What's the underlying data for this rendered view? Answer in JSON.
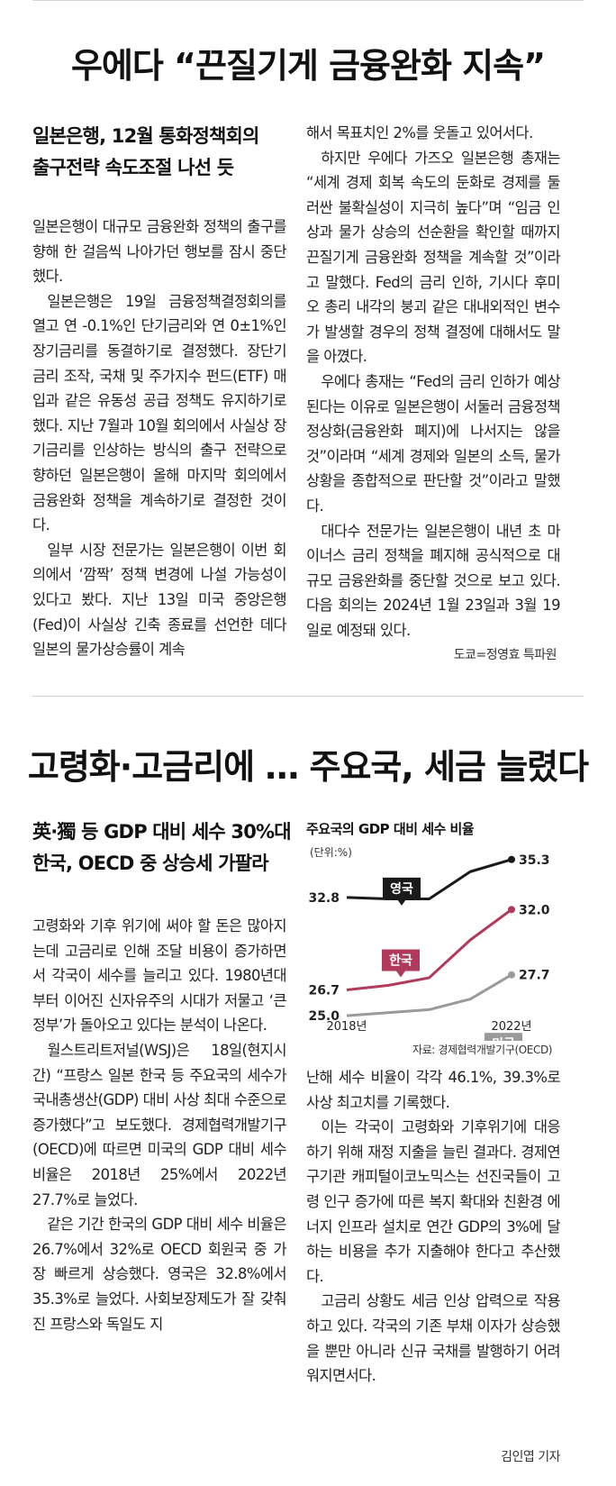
{
  "article1": {
    "headline": "우에다 “끈질기게 금융완화 지속”",
    "subhead": [
      "일본은행, 12월 통화정책회의",
      "출구전략 속도조절 나선 듯"
    ],
    "left_paragraphs": [
      "일본은행이 대규모 금융완화 정책의 출구를 향해 한 걸음씩 나아가던 행보를 잠시 중단했다.",
      "일본은행은 19일 금융정책결정회의를 열고 연 -0.1%인 단기금리와 연 0±1%인 장기금리를 동결하기로 결정했다. 장단기 금리 조작, 국채 및 주가지수 펀드(ETF) 매입과 같은 유동성 공급 정책도 유지하기로 했다. 지난 7월과 10월 회의에서 사실상 장기금리를 인상하는 방식의 출구 전략으로 향하던 일본은행이 올해 마지막 회의에서 금융완화 정책을 계속하기로 결정한 것이다.",
      "일부 시장 전문가는 일본은행이 이번 회의에서 ‘깜짝’ 정책 변경에 나설 가능성이 있다고 봤다. 지난 13일 미국 중앙은행(Fed)이 사실상 긴축 종료를 선언한 데다 일본의 물가상승률이 계속"
    ],
    "right_paragraphs": [
      "해서 목표치인 2%를 웃돌고 있어서다.",
      "하지만 우에다 가즈오 일본은행 총재는 “세계 경제 회복 속도의 둔화로 경제를 둘러싼 불확실성이 지극히 높다”며 “임금 인상과 물가 상승의 선순환을 확인할 때까지 끈질기게 금융완화 정책을 계속할 것”이라고 말했다. Fed의 금리 인하, 기시다 후미오 총리 내각의 붕괴 같은 대내외적인 변수가 발생할 경우의 정책 결정에 대해서도 말을 아꼈다.",
      "우에다 총재는 “Fed의 금리 인하가 예상된다는 이유로 일본은행이 서둘러 금융정책 정상화(금융완화 폐지)에 나서지는 않을 것”이라며 “세계 경제와 일본의 소득, 물가 상황을 종합적으로 판단할 것”이라고 말했다.",
      "대다수 전문가는 일본은행이 내년 초 마이너스 금리 정책을 폐지해 공식적으로 대규모 금융완화를 중단할 것으로 보고 있다. 다음 회의는 2024년 1월 23일과 3월 19일로 예정돼 있다."
    ],
    "byline": "도쿄=정영효 특파원"
  },
  "article2": {
    "headline": "고령화·고금리에 … 주요국, 세금 늘렸다",
    "subhead": [
      "英·獨 등 GDP 대비 세수 30%대",
      "한국, OECD 중 상승세 가팔라"
    ],
    "left_paragraphs": [
      "고령화와 기후 위기에 써야 할 돈은 많아지는데 고금리로 인해 조달 비용이 증가하면서 각국이 세수를 늘리고 있다. 1980년대부터 이어진 신자유주의 시대가 저물고 ‘큰 정부’가 돌아오고 있다는 분석이 나온다.",
      "월스트리트저널(WSJ)은 18일(현지시간) “프랑스 일본 한국 등 주요국의 세수가 국내총생산(GDP) 대비 사상 최대 수준으로 증가했다”고 보도했다. 경제협력개발기구(OECD)에 따르면 미국의 GDP 대비 세수 비율은 2018년 25%에서 2022년 27.7%로 늘었다.",
      "같은 기간 한국의 GDP 대비 세수 비율은 26.7%에서 32%로 OECD 회원국 중 가장 빠르게 상승했다. 영국은 32.8%에서 35.3%로 늘었다. 사회보장제도가 잘 갖춰진 프랑스와 독일도 지"
    ],
    "right_paragraphs": [
      "난해 세수 비율이 각각 46.1%, 39.3%로 사상 최고치를 기록했다.",
      "이는 각국이 고령화와 기후위기에 대응하기 위해 재정 지출을 늘린 결과다. 경제연구기관 캐피털이코노믹스는 선진국들이 고령 인구 증가에 따른 복지 확대와 친환경 에너지 인프라 설치로 연간 GDP의 3%에 달하는 비용을 추가 지출해야 한다고 추산했다.",
      "고금리 상황도 세금 인상 압력으로 작용하고 있다. 각국의 기존 부채 이자가 상승했을 뿐만 아니라 신규 국채를 발행하기 어려워지면서다."
    ],
    "byline": "김인엽 기자"
  },
  "chart_data": {
    "type": "line",
    "title": "주요국의 GDP 대비 세수 비율",
    "unit": "(단위:%)",
    "xlabel": "",
    "ylabel": "",
    "x": [
      2018,
      2019,
      2020,
      2021,
      2022
    ],
    "x_tick_labels": [
      "2018년",
      "2022년"
    ],
    "series": [
      {
        "name": "영국",
        "values": [
          32.8,
          32.7,
          32.7,
          34.5,
          35.3
        ],
        "color": "#1a1a1a",
        "start_label": "32.8",
        "end_label": "35.3"
      },
      {
        "name": "한국",
        "values": [
          26.7,
          27.0,
          27.5,
          30.0,
          32.0
        ],
        "color": "#b03a5b",
        "start_label": "26.7",
        "end_label": "32.0"
      },
      {
        "name": "미국",
        "values": [
          25.0,
          25.2,
          25.4,
          26.1,
          27.7
        ],
        "color": "#9a9a9a",
        "start_label": "25.0",
        "end_label": "27.7"
      }
    ],
    "ylim": [
      24,
      36
    ],
    "grid": false,
    "source": "자료: 경제협력개발기구(OECD)"
  }
}
